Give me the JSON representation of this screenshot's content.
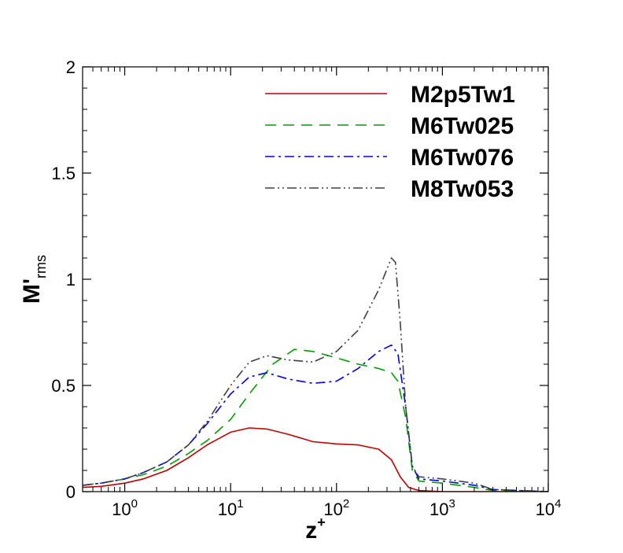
{
  "chart_data": {
    "type": "line",
    "x_scale": "log",
    "xlim": [
      0.4,
      10000
    ],
    "ylim": [
      0,
      2
    ],
    "xlabel_base": "z",
    "xlabel_sup": "+",
    "ylabel_base": "M'",
    "ylabel_sub": "rms",
    "x_ticks": [
      {
        "value": 1,
        "base": "10",
        "exp": "0"
      },
      {
        "value": 10,
        "base": "10",
        "exp": "1"
      },
      {
        "value": 100,
        "base": "10",
        "exp": "2"
      },
      {
        "value": 1000,
        "base": "10",
        "exp": "3"
      },
      {
        "value": 10000,
        "base": "10",
        "exp": "4"
      }
    ],
    "y_ticks": [
      {
        "value": 0,
        "label": "0"
      },
      {
        "value": 0.5,
        "label": "0.5"
      },
      {
        "value": 1,
        "label": "1"
      },
      {
        "value": 1.5,
        "label": "1.5"
      },
      {
        "value": 2,
        "label": "2"
      }
    ],
    "series": [
      {
        "name": "M2p5Tw1",
        "color": "#c00000",
        "dash": "solid",
        "x": [
          0.4,
          0.6,
          1,
          1.5,
          2.5,
          4,
          6,
          10,
          15,
          22,
          35,
          60,
          100,
          160,
          250,
          330,
          400,
          480,
          600,
          1000,
          3000,
          10000
        ],
        "y": [
          0.02,
          0.025,
          0.04,
          0.06,
          0.1,
          0.16,
          0.22,
          0.28,
          0.3,
          0.295,
          0.27,
          0.235,
          0.225,
          0.22,
          0.2,
          0.15,
          0.07,
          0.02,
          0.005,
          0.0,
          0.0,
          0.0
        ]
      },
      {
        "name": "M6Tw025",
        "color": "#00a000",
        "dash": "dashed",
        "x": [
          0.4,
          0.6,
          1,
          1.5,
          2.5,
          4,
          6,
          10,
          15,
          25,
          40,
          60,
          100,
          160,
          250,
          330,
          380,
          450,
          520,
          600,
          1000,
          2000,
          3000,
          10000
        ],
        "y": [
          0.03,
          0.04,
          0.06,
          0.08,
          0.12,
          0.18,
          0.24,
          0.34,
          0.46,
          0.6,
          0.67,
          0.66,
          0.63,
          0.6,
          0.58,
          0.56,
          0.52,
          0.35,
          0.1,
          0.05,
          0.04,
          0.02,
          0.005,
          0.0
        ]
      },
      {
        "name": "M6Tw076",
        "color": "#0000e0",
        "dash": "dashdot",
        "x": [
          0.4,
          0.6,
          1,
          1.5,
          2.5,
          4,
          6,
          10,
          15,
          22,
          35,
          60,
          100,
          160,
          250,
          330,
          380,
          450,
          520,
          600,
          1000,
          2000,
          3000,
          10000
        ],
        "y": [
          0.03,
          0.04,
          0.06,
          0.09,
          0.14,
          0.22,
          0.32,
          0.46,
          0.54,
          0.56,
          0.53,
          0.51,
          0.52,
          0.58,
          0.66,
          0.69,
          0.65,
          0.4,
          0.12,
          0.06,
          0.05,
          0.03,
          0.01,
          0.0
        ]
      },
      {
        "name": "M8Tw053",
        "color": "#404040",
        "dash": "dashdotdot",
        "x": [
          0.4,
          0.6,
          1,
          1.5,
          2.5,
          4,
          6,
          10,
          15,
          22,
          35,
          60,
          100,
          160,
          250,
          330,
          360,
          400,
          450,
          520,
          600,
          1000,
          2000,
          3000,
          10000
        ],
        "y": [
          0.03,
          0.04,
          0.06,
          0.09,
          0.14,
          0.22,
          0.33,
          0.5,
          0.61,
          0.64,
          0.62,
          0.61,
          0.66,
          0.76,
          0.95,
          1.1,
          1.08,
          0.8,
          0.4,
          0.12,
          0.07,
          0.06,
          0.04,
          0.01,
          0.0
        ]
      }
    ]
  }
}
